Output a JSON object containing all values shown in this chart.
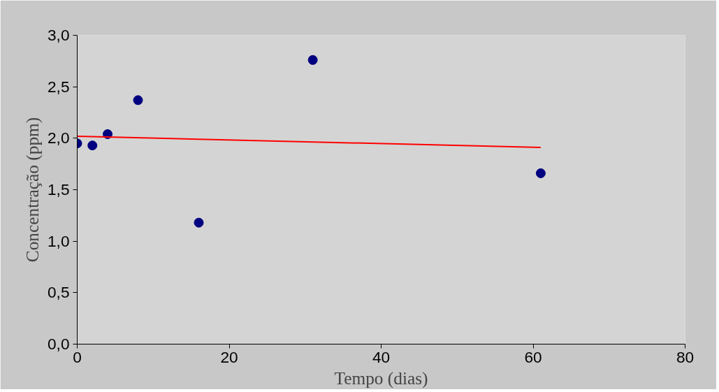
{
  "chart_data": {
    "type": "scatter",
    "xlabel": "Tempo (dias)",
    "ylabel": "Concentração (ppm)",
    "series": [
      {
        "color": "#000080",
        "x": [
          0,
          2,
          4,
          8,
          16,
          31,
          61
        ],
        "values": [
          1.95,
          1.93,
          2.04,
          2.37,
          1.18,
          2.76,
          1.66
        ],
        "marker": "circle"
      },
      {
        "type": "line",
        "color": "#ff0000",
        "x": [
          0,
          61
        ],
        "values": [
          2.02,
          1.91
        ],
        "marker": "none",
        "line_style": "solid"
      }
    ],
    "xlim": [
      0,
      80
    ],
    "xticks": [
      0,
      20,
      40,
      60,
      80
    ],
    "ylim": [
      0,
      3
    ],
    "yticks": [
      {
        "value": 0,
        "label": "0,0"
      },
      {
        "value": 0.5,
        "label": "0,5"
      },
      {
        "value": 1,
        "label": "1,0"
      },
      {
        "value": 1.5,
        "label": "1,5"
      },
      {
        "value": 2,
        "label": "2,0"
      },
      {
        "value": 2.5,
        "label": "2,5"
      },
      {
        "value": 3,
        "label": "3,0"
      }
    ],
    "grid": false
  }
}
